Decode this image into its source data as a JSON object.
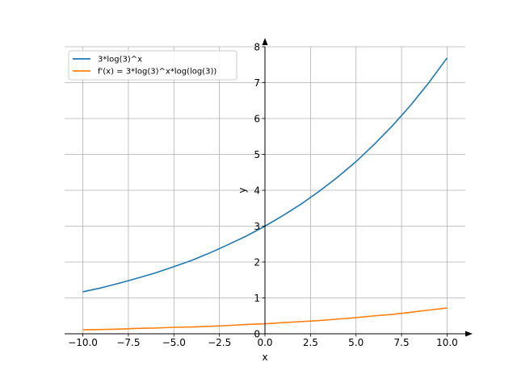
{
  "chart_data": {
    "type": "line",
    "xlabel": "x",
    "ylabel": "y",
    "xlim": [
      -11.0,
      11.0
    ],
    "ylim": [
      0,
      8.0
    ],
    "grid": true,
    "legend_position": "top-left",
    "x_ticks": [
      -10.0,
      -7.5,
      -5.0,
      -2.5,
      0.0,
      2.5,
      5.0,
      7.5,
      10.0
    ],
    "x_tick_labels": [
      "−10.0",
      "−7.5",
      "−5.0",
      "−2.5",
      "0.0",
      "2.5",
      "5.0",
      "7.5",
      "10.0"
    ],
    "y_ticks": [
      0,
      1,
      2,
      3,
      4,
      5,
      6,
      7,
      8
    ],
    "y_tick_labels": [
      "0",
      "1",
      "2",
      "3",
      "4",
      "5",
      "6",
      "7",
      "8"
    ],
    "series": [
      {
        "name": "3*log(3)^x",
        "color": "#1f77b4",
        "x": [
          -10,
          -9,
          -8,
          -7,
          -6,
          -5,
          -4,
          -3,
          -2,
          -1,
          0,
          1,
          2,
          3,
          4,
          5,
          6,
          7,
          8,
          9,
          10
        ],
        "y": [
          1.17,
          1.28,
          1.41,
          1.55,
          1.7,
          1.87,
          2.05,
          2.26,
          2.49,
          2.73,
          3.0,
          3.3,
          3.62,
          3.98,
          4.37,
          4.8,
          5.28,
          5.8,
          6.37,
          7.0,
          7.69
        ]
      },
      {
        "name": "f'(x) = 3*log(3)^x*log(log(3))",
        "color": "#ff7f0e",
        "x": [
          -10,
          -9,
          -8,
          -7,
          -6,
          -5,
          -4,
          -3,
          -2,
          -1,
          0,
          1,
          2,
          3,
          4,
          5,
          6,
          7,
          8,
          9,
          10
        ],
        "y": [
          0.11,
          0.12,
          0.13,
          0.15,
          0.16,
          0.18,
          0.19,
          0.21,
          0.23,
          0.26,
          0.28,
          0.31,
          0.34,
          0.37,
          0.41,
          0.45,
          0.5,
          0.54,
          0.6,
          0.66,
          0.72
        ]
      }
    ]
  }
}
